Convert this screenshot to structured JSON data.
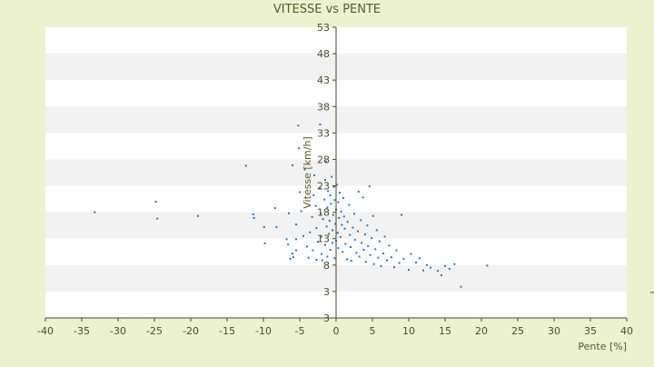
{
  "chart_data": {
    "type": "scatter",
    "title": "VITESSE vs PENTE",
    "xlabel": "Pente [%]",
    "ylabel": "Vitesse [km/h]",
    "xlim": [
      -40,
      40
    ],
    "ylim": [
      -2,
      53
    ],
    "xticks": [
      "-40",
      "-35",
      "-30",
      "-25",
      "-20",
      "-15",
      "-10",
      "-5",
      "0",
      "5",
      "10",
      "15",
      "20",
      "25",
      "30",
      "35",
      "40"
    ],
    "yticks": [
      "53",
      "48",
      "43",
      "38",
      "33",
      "28",
      "23",
      "18",
      "13",
      "8",
      "3",
      "3"
    ],
    "colors": {
      "background": "#ecf2cf",
      "plot": "#ffffff",
      "band": "#f2f2f2",
      "axis": "#4a4a2a",
      "points": "#2e75b6"
    },
    "grid": "horizontal-bands",
    "points": [
      [
        -33.2,
        18.0
      ],
      [
        -24.8,
        20.0
      ],
      [
        -24.6,
        16.8
      ],
      [
        -19.0,
        17.3
      ],
      [
        -12.4,
        26.8
      ],
      [
        -11.4,
        17.6
      ],
      [
        -11.3,
        16.9
      ],
      [
        -9.9,
        15.2
      ],
      [
        -9.8,
        12.1
      ],
      [
        -8.4,
        18.8
      ],
      [
        -8.2,
        15.2
      ],
      [
        -6.8,
        12.9
      ],
      [
        -6.6,
        11.9
      ],
      [
        -6.5,
        17.8
      ],
      [
        -6.3,
        9.2
      ],
      [
        -6.0,
        26.9
      ],
      [
        -6.0,
        10.2
      ],
      [
        -5.9,
        9.5
      ],
      [
        -5.5,
        10.8
      ],
      [
        -5.5,
        15.7
      ],
      [
        -5.5,
        12.9
      ],
      [
        -5.2,
        34.4
      ],
      [
        -5.1,
        30.1
      ],
      [
        -5.0,
        21.8
      ],
      [
        -4.8,
        18.2
      ],
      [
        -4.5,
        13.5
      ],
      [
        -4.3,
        26.1
      ],
      [
        -4.0,
        11.5
      ],
      [
        -3.8,
        9.4
      ],
      [
        -3.6,
        14.2
      ],
      [
        -3.3,
        17.1
      ],
      [
        -3.2,
        10.8
      ],
      [
        -3.1,
        21.2
      ],
      [
        -3.0,
        25.0
      ],
      [
        -2.8,
        19.2
      ],
      [
        -2.7,
        15.0
      ],
      [
        -2.7,
        9.0
      ],
      [
        -2.5,
        12.4
      ],
      [
        -2.2,
        34.6
      ],
      [
        -2.2,
        22.5
      ],
      [
        -2.1,
        17.8
      ],
      [
        -2.0,
        13.4
      ],
      [
        -2.0,
        10.1
      ],
      [
        -1.9,
        8.9
      ],
      [
        -1.8,
        16.7
      ],
      [
        -1.6,
        20.4
      ],
      [
        -1.5,
        24.1
      ],
      [
        -1.5,
        11.8
      ],
      [
        -1.4,
        27.6
      ],
      [
        -1.3,
        15.3
      ],
      [
        -1.2,
        18.9
      ],
      [
        -1.2,
        9.6
      ],
      [
        -1.1,
        22.0
      ],
      [
        -1.0,
        13.9
      ],
      [
        -0.9,
        16.4
      ],
      [
        -0.8,
        21.2
      ],
      [
        -0.8,
        10.9
      ],
      [
        -0.7,
        19.6
      ],
      [
        -0.6,
        24.7
      ],
      [
        -0.5,
        14.6
      ],
      [
        -0.5,
        12.2
      ],
      [
        -0.4,
        17.5
      ],
      [
        -0.3,
        22.8
      ],
      [
        -0.2,
        20.3
      ],
      [
        -0.2,
        9.3
      ],
      [
        -0.1,
        15.8
      ],
      [
        0.0,
        18.5
      ],
      [
        0.0,
        12.6
      ],
      [
        0.1,
        23.2
      ],
      [
        0.2,
        14.1
      ],
      [
        0.3,
        19.9
      ],
      [
        0.3,
        11.2
      ],
      [
        0.4,
        16.9
      ],
      [
        0.5,
        21.7
      ],
      [
        0.6,
        13.3
      ],
      [
        0.7,
        18.1
      ],
      [
        0.8,
        15.6
      ],
      [
        0.9,
        10.5
      ],
      [
        1.0,
        20.7
      ],
      [
        1.1,
        17.2
      ],
      [
        1.2,
        14.9
      ],
      [
        1.3,
        12.0
      ],
      [
        1.5,
        9.1
      ],
      [
        1.6,
        16.2
      ],
      [
        1.8,
        19.4
      ],
      [
        1.9,
        13.7
      ],
      [
        2.0,
        11.4
      ],
      [
        2.1,
        8.8
      ],
      [
        2.3,
        15.1
      ],
      [
        2.5,
        17.7
      ],
      [
        2.6,
        12.8
      ],
      [
        2.8,
        10.3
      ],
      [
        3.0,
        14.4
      ],
      [
        3.1,
        21.9
      ],
      [
        3.2,
        9.6
      ],
      [
        3.4,
        16.5
      ],
      [
        3.5,
        12.2
      ],
      [
        3.7,
        20.8
      ],
      [
        3.8,
        10.9
      ],
      [
        4.0,
        13.8
      ],
      [
        4.1,
        8.6
      ],
      [
        4.3,
        15.5
      ],
      [
        4.4,
        11.6
      ],
      [
        4.6,
        22.9
      ],
      [
        4.7,
        9.9
      ],
      [
        4.9,
        13.1
      ],
      [
        5.1,
        17.3
      ],
      [
        5.2,
        8.2
      ],
      [
        5.4,
        11.0
      ],
      [
        5.6,
        14.6
      ],
      [
        5.8,
        9.4
      ],
      [
        6.0,
        12.5
      ],
      [
        6.2,
        7.8
      ],
      [
        6.5,
        10.2
      ],
      [
        6.7,
        13.4
      ],
      [
        7.0,
        8.9
      ],
      [
        7.3,
        11.7
      ],
      [
        7.6,
        9.5
      ],
      [
        8.0,
        7.6
      ],
      [
        8.3,
        10.8
      ],
      [
        8.7,
        8.4
      ],
      [
        9.0,
        17.5
      ],
      [
        9.3,
        9.2
      ],
      [
        10.0,
        7.1
      ],
      [
        10.3,
        10.1
      ],
      [
        11.0,
        8.5
      ],
      [
        11.5,
        9.3
      ],
      [
        12.0,
        7.0
      ],
      [
        12.5,
        8.0
      ],
      [
        13.0,
        7.5
      ],
      [
        14.0,
        6.9
      ],
      [
        14.5,
        6.1
      ],
      [
        15.0,
        7.8
      ],
      [
        15.6,
        7.3
      ],
      [
        16.3,
        8.2
      ],
      [
        17.2,
        3.9
      ],
      [
        20.8,
        7.9
      ]
    ]
  }
}
